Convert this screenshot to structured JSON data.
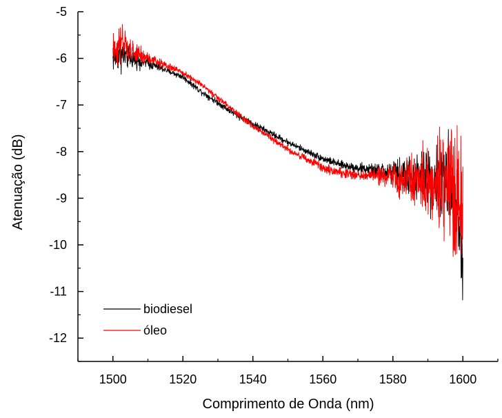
{
  "chart_data": {
    "type": "line",
    "title": "",
    "xlabel": "Comprimento de Onda (nm)",
    "ylabel": "Atenuação (dB)",
    "xlim": [
      1490,
      1610
    ],
    "ylim": [
      -12.5,
      -5
    ],
    "x_ticks": [
      1500,
      1520,
      1540,
      1560,
      1580,
      1600
    ],
    "x_tick_labels": [
      "1500",
      "1520",
      "1540",
      "1560",
      "1580",
      "1600"
    ],
    "y_ticks": [
      -5,
      -6,
      -7,
      -8,
      -9,
      -10,
      -11,
      -12
    ],
    "y_tick_labels": [
      "-5",
      "-6",
      "-7",
      "-8",
      "-9",
      "-10",
      "-11",
      "-12"
    ],
    "grid": false,
    "legend_position": "bottom-left",
    "series": [
      {
        "name": "biodiesel",
        "color": "#000000",
        "x": [
          1500,
          1502,
          1505,
          1510,
          1515,
          1520,
          1525,
          1530,
          1535,
          1540,
          1545,
          1550,
          1555,
          1560,
          1565,
          1570,
          1575,
          1580,
          1585,
          1590,
          1595,
          1598,
          1600
        ],
        "y": [
          -6.0,
          -5.9,
          -6.0,
          -6.1,
          -6.25,
          -6.4,
          -6.7,
          -6.95,
          -7.2,
          -7.4,
          -7.6,
          -7.8,
          -7.98,
          -8.15,
          -8.28,
          -8.35,
          -8.4,
          -8.45,
          -8.55,
          -8.6,
          -8.6,
          -8.9,
          -10.6
        ],
        "noise": [
          0.22,
          0.3,
          0.15,
          0.1,
          0.05,
          0.05,
          0.05,
          0.05,
          0.05,
          0.05,
          0.05,
          0.05,
          0.05,
          0.06,
          0.06,
          0.08,
          0.1,
          0.2,
          0.35,
          0.5,
          0.6,
          0.85,
          0.5
        ]
      },
      {
        "name": "óleo",
        "color": "#ff0000",
        "x": [
          1500,
          1502,
          1505,
          1510,
          1515,
          1520,
          1525,
          1530,
          1535,
          1540,
          1545,
          1550,
          1555,
          1560,
          1565,
          1570,
          1575,
          1580,
          1585,
          1590,
          1595,
          1598,
          1600
        ],
        "y": [
          -5.85,
          -5.7,
          -5.85,
          -6.0,
          -6.15,
          -6.3,
          -6.55,
          -6.85,
          -7.15,
          -7.45,
          -7.7,
          -7.95,
          -8.15,
          -8.35,
          -8.45,
          -8.5,
          -8.5,
          -8.55,
          -8.6,
          -8.62,
          -8.65,
          -8.9,
          -9.5
        ],
        "noise": [
          0.25,
          0.35,
          0.2,
          0.1,
          0.06,
          0.05,
          0.05,
          0.05,
          0.05,
          0.05,
          0.05,
          0.05,
          0.06,
          0.08,
          0.08,
          0.1,
          0.12,
          0.22,
          0.35,
          0.55,
          0.8,
          1.2,
          0.8
        ]
      }
    ]
  }
}
